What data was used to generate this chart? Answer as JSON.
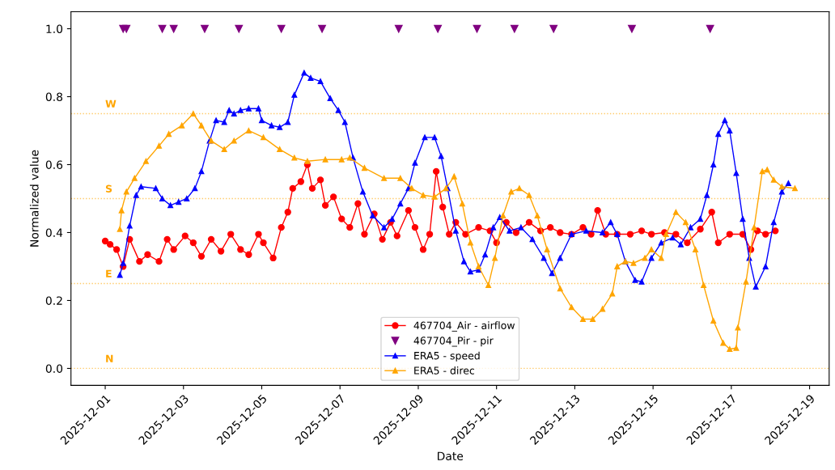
{
  "chart_data": {
    "type": "line",
    "xlabel": "Date",
    "ylabel": "Normalized value",
    "xlim": [
      "2025-11-30T03:00",
      "2025-12-19T12:00"
    ],
    "ylim": [
      -0.05,
      1.05
    ],
    "xticks": [
      "2025-12-01",
      "2025-12-03",
      "2025-12-05",
      "2025-12-07",
      "2025-12-09",
      "2025-12-11",
      "2025-12-13",
      "2025-12-15",
      "2025-12-17",
      "2025-12-19"
    ],
    "yticks": [
      {
        "value": 0,
        "label": "0.0"
      },
      0.2,
      0.4,
      0.6,
      0.8,
      {
        "value": 1,
        "label": "1.0"
      }
    ],
    "grid": false,
    "legend": "bottom",
    "ref_lines": [
      {
        "axis": "y",
        "value": 0,
        "label": "N",
        "color": "#ffc966",
        "line_style": "dotted"
      },
      {
        "axis": "y",
        "value": 0.25,
        "label": "E",
        "color": "#ffc966",
        "line_style": "dotted"
      },
      {
        "axis": "y",
        "value": 0.5,
        "label": "S",
        "color": "#ffc966",
        "line_style": "dotted"
      },
      {
        "axis": "y",
        "value": 0.75,
        "label": "W",
        "color": "#ffc966",
        "line_style": "dotted"
      }
    ],
    "series": [
      {
        "name": "467704_Air - airflow",
        "color": "#ff0000",
        "marker": "circle",
        "line_style": "solid",
        "x": [
          "2025-12-01T00:00",
          "2025-12-01T03:00",
          "2025-12-01T07:00",
          "2025-12-01T11:00",
          "2025-12-01T15:00",
          "2025-12-01T21:00",
          "2025-12-02T02:00",
          "2025-12-02T09:00",
          "2025-12-02T14:00",
          "2025-12-02T18:00",
          "2025-12-03T01:00",
          "2025-12-03T06:00",
          "2025-12-03T11:00",
          "2025-12-03T17:00",
          "2025-12-03T23:00",
          "2025-12-04T05:00",
          "2025-12-04T11:00",
          "2025-12-04T16:00",
          "2025-12-04T22:00",
          "2025-12-05T01:00",
          "2025-12-05T07:00",
          "2025-12-05T12:00",
          "2025-12-05T16:00",
          "2025-12-05T19:00",
          "2025-12-06T00:00",
          "2025-12-06T04:00",
          "2025-12-06T07:00",
          "2025-12-06T12:00",
          "2025-12-06T15:00",
          "2025-12-06T20:00",
          "2025-12-07T01:00",
          "2025-12-07T06:00",
          "2025-12-07T11:00",
          "2025-12-07T15:00",
          "2025-12-07T21:00",
          "2025-12-08T02:00",
          "2025-12-08T07:00",
          "2025-12-08T11:00",
          "2025-12-08T18:00",
          "2025-12-08T22:00",
          "2025-12-09T03:00",
          "2025-12-09T07:00",
          "2025-12-09T11:00",
          "2025-12-09T15:00",
          "2025-12-09T19:00",
          "2025-12-09T23:00",
          "2025-12-10T05:00",
          "2025-12-10T13:00",
          "2025-12-10T20:00",
          "2025-12-11T00:00",
          "2025-12-11T06:00",
          "2025-12-11T12:00",
          "2025-12-11T20:00",
          "2025-12-12T03:00",
          "2025-12-12T09:00",
          "2025-12-12T15:00",
          "2025-12-12T22:00",
          "2025-12-13T05:00",
          "2025-12-13T10:00",
          "2025-12-13T14:00",
          "2025-12-13T19:00",
          "2025-12-14T02:00",
          "2025-12-14T10:00",
          "2025-12-14T17:00",
          "2025-12-14T23:00",
          "2025-12-15T07:00",
          "2025-12-15T14:00",
          "2025-12-15T21:00",
          "2025-12-16T05:00",
          "2025-12-16T12:00",
          "2025-12-16T16:00",
          "2025-12-16T23:00",
          "2025-12-17T07:00",
          "2025-12-17T12:00",
          "2025-12-17T16:00",
          "2025-12-17T21:00",
          "2025-12-18T03:00"
        ],
        "values": [
          0.375,
          0.365,
          0.35,
          0.3,
          0.38,
          0.315,
          0.335,
          0.315,
          0.38,
          0.35,
          0.39,
          0.37,
          0.33,
          0.38,
          0.345,
          0.395,
          0.35,
          0.335,
          0.395,
          0.37,
          0.325,
          0.415,
          0.46,
          0.53,
          0.55,
          0.6,
          0.53,
          0.555,
          0.48,
          0.505,
          0.44,
          0.415,
          0.485,
          0.395,
          0.455,
          0.38,
          0.43,
          0.39,
          0.465,
          0.415,
          0.35,
          0.395,
          0.58,
          0.475,
          0.395,
          0.43,
          0.395,
          0.415,
          0.405,
          0.37,
          0.43,
          0.4,
          0.43,
          0.405,
          0.415,
          0.4,
          0.395,
          0.415,
          0.395,
          0.465,
          0.395,
          0.395,
          0.395,
          0.405,
          0.395,
          0.4,
          0.395,
          0.37,
          0.41,
          0.46,
          0.37,
          0.395,
          0.395,
          0.35,
          0.405,
          0.395,
          0.405
        ]
      },
      {
        "name": "467704_Pir - pir",
        "type": "scatter",
        "color": "#800080",
        "marker": "triangle_down",
        "x": [
          "2025-12-01T11:00",
          "2025-12-01T13:00",
          "2025-12-02T11:00",
          "2025-12-02T18:00",
          "2025-12-03T13:00",
          "2025-12-04T10:00",
          "2025-12-05T12:00",
          "2025-12-06T13:00",
          "2025-12-08T12:00",
          "2025-12-09T12:00",
          "2025-12-10T12:00",
          "2025-12-11T11:00",
          "2025-12-12T11:00",
          "2025-12-14T11:00",
          "2025-12-16T11:00"
        ],
        "values": [
          1,
          1,
          1,
          1,
          1,
          1,
          1,
          1,
          1,
          1,
          1,
          1,
          1,
          1,
          1
        ]
      },
      {
        "name": "ERA5 - speed",
        "color": "#0000ff",
        "marker": "triangle",
        "line_style": "solid",
        "x": [
          "2025-12-01T09:00",
          "2025-12-01T11:00",
          "2025-12-01T15:00",
          "2025-12-01T19:00",
          "2025-12-01T22:00",
          "2025-12-02T07:00",
          "2025-12-02T11:00",
          "2025-12-02T16:00",
          "2025-12-02T21:00",
          "2025-12-03T02:00",
          "2025-12-03T07:00",
          "2025-12-03T11:00",
          "2025-12-03T16:00",
          "2025-12-03T20:00",
          "2025-12-04T01:00",
          "2025-12-04T04:00",
          "2025-12-04T07:00",
          "2025-12-04T11:00",
          "2025-12-04T16:00",
          "2025-12-04T22:00",
          "2025-12-05T00:00",
          "2025-12-05T06:00",
          "2025-12-05T11:00",
          "2025-12-05T16:00",
          "2025-12-05T20:00",
          "2025-12-06T02:00",
          "2025-12-06T06:00",
          "2025-12-06T12:00",
          "2025-12-06T18:00",
          "2025-12-06T23:00",
          "2025-12-07T03:00",
          "2025-12-07T08:00",
          "2025-12-07T14:00",
          "2025-12-07T20:00",
          "2025-12-08T03:00",
          "2025-12-08T08:00",
          "2025-12-08T13:00",
          "2025-12-08T18:00",
          "2025-12-08T22:00",
          "2025-12-09T04:00",
          "2025-12-09T10:00",
          "2025-12-09T14:00",
          "2025-12-09T18:00",
          "2025-12-09T23:00",
          "2025-12-10T04:00",
          "2025-12-10T08:00",
          "2025-12-10T13:00",
          "2025-12-10T17:00",
          "2025-12-10T22:00",
          "2025-12-11T02:00",
          "2025-12-11T08:00",
          "2025-12-11T15:00",
          "2025-12-11T22:00",
          "2025-12-12T05:00",
          "2025-12-12T10:00",
          "2025-12-12T15:00",
          "2025-12-12T22:00",
          "2025-12-13T07:00",
          "2025-12-13T17:00",
          "2025-12-13T22:00",
          "2025-12-14T02:00",
          "2025-12-14T07:00",
          "2025-12-14T13:00",
          "2025-12-14T17:00",
          "2025-12-14T23:00",
          "2025-12-15T05:00",
          "2025-12-15T12:00",
          "2025-12-15T17:00",
          "2025-12-15T23:00",
          "2025-12-16T05:00",
          "2025-12-16T09:00",
          "2025-12-16T13:00",
          "2025-12-16T16:00",
          "2025-12-16T20:00",
          "2025-12-16T23:00",
          "2025-12-17T03:00",
          "2025-12-17T07:00",
          "2025-12-17T11:00",
          "2025-12-17T15:00",
          "2025-12-17T21:00",
          "2025-12-18T02:00",
          "2025-12-18T07:00",
          "2025-12-18T11:00"
        ],
        "values": [
          0.275,
          0.31,
          0.42,
          0.51,
          0.535,
          0.53,
          0.5,
          0.48,
          0.49,
          0.5,
          0.53,
          0.58,
          0.67,
          0.73,
          0.725,
          0.76,
          0.75,
          0.76,
          0.765,
          0.765,
          0.73,
          0.715,
          0.71,
          0.725,
          0.805,
          0.87,
          0.855,
          0.845,
          0.795,
          0.76,
          0.725,
          0.62,
          0.52,
          0.45,
          0.415,
          0.44,
          0.485,
          0.53,
          0.605,
          0.68,
          0.68,
          0.625,
          0.53,
          0.405,
          0.315,
          0.285,
          0.29,
          0.335,
          0.415,
          0.445,
          0.405,
          0.415,
          0.38,
          0.325,
          0.28,
          0.325,
          0.395,
          0.405,
          0.4,
          0.43,
          0.395,
          0.315,
          0.26,
          0.255,
          0.325,
          0.37,
          0.385,
          0.365,
          0.415,
          0.44,
          0.51,
          0.6,
          0.69,
          0.73,
          0.7,
          0.575,
          0.44,
          0.325,
          0.24,
          0.3,
          0.43,
          0.52,
          0.545
        ]
      },
      {
        "name": "ERA5 - direc",
        "color": "#ffa500",
        "marker": "triangle",
        "line_style": "solid",
        "x": [
          "2025-12-01T09:00",
          "2025-12-01T10:00",
          "2025-12-01T13:00",
          "2025-12-01T18:00",
          "2025-12-02T01:00",
          "2025-12-02T09:00",
          "2025-12-02T15:00",
          "2025-12-02T23:00",
          "2025-12-03T06:00",
          "2025-12-03T11:00",
          "2025-12-03T17:00",
          "2025-12-04T01:00",
          "2025-12-04T07:00",
          "2025-12-04T16:00",
          "2025-12-05T01:00",
          "2025-12-05T11:00",
          "2025-12-05T20:00",
          "2025-12-06T04:00",
          "2025-12-06T15:00",
          "2025-12-07T01:00",
          "2025-12-07T06:00",
          "2025-12-07T15:00",
          "2025-12-08T03:00",
          "2025-12-08T13:00",
          "2025-12-08T20:00",
          "2025-12-09T03:00",
          "2025-12-09T10:00",
          "2025-12-09T17:00",
          "2025-12-09T22:00",
          "2025-12-10T03:00",
          "2025-12-10T08:00",
          "2025-12-10T13:00",
          "2025-12-10T19:00",
          "2025-12-10T23:00",
          "2025-12-11T04:00",
          "2025-12-11T09:00",
          "2025-12-11T14:00",
          "2025-12-11T20:00",
          "2025-12-12T01:00",
          "2025-12-12T07:00",
          "2025-12-12T15:00",
          "2025-12-12T22:00",
          "2025-12-13T05:00",
          "2025-12-13T11:00",
          "2025-12-13T17:00",
          "2025-12-13T23:00",
          "2025-12-14T02:00",
          "2025-12-14T07:00",
          "2025-12-14T12:00",
          "2025-12-14T19:00",
          "2025-12-14T23:00",
          "2025-12-15T05:00",
          "2025-12-15T08:00",
          "2025-12-15T14:00",
          "2025-12-15T20:00",
          "2025-12-16T02:00",
          "2025-12-16T07:00",
          "2025-12-16T13:00",
          "2025-12-16T19:00",
          "2025-12-16T23:00",
          "2025-12-17T03:00",
          "2025-12-17T04:00",
          "2025-12-17T09:00",
          "2025-12-17T14:00",
          "2025-12-17T19:00",
          "2025-12-17T22:00",
          "2025-12-18T02:00",
          "2025-12-18T07:00",
          "2025-12-18T15:00"
        ],
        "values": [
          0.41,
          0.465,
          0.52,
          0.56,
          0.61,
          0.655,
          0.69,
          0.715,
          0.75,
          0.715,
          0.67,
          0.645,
          0.67,
          0.7,
          0.68,
          0.645,
          0.62,
          0.61,
          0.615,
          0.615,
          0.62,
          0.59,
          0.56,
          0.56,
          0.53,
          0.51,
          0.505,
          0.53,
          0.565,
          0.485,
          0.37,
          0.3,
          0.245,
          0.325,
          0.45,
          0.52,
          0.53,
          0.51,
          0.45,
          0.35,
          0.235,
          0.18,
          0.145,
          0.145,
          0.175,
          0.22,
          0.3,
          0.315,
          0.31,
          0.325,
          0.35,
          0.325,
          0.395,
          0.46,
          0.43,
          0.35,
          0.245,
          0.14,
          0.075,
          0.057,
          0.06,
          0.12,
          0.255,
          0.415,
          0.58,
          0.585,
          0.555,
          0.535,
          0.53
        ]
      }
    ]
  }
}
